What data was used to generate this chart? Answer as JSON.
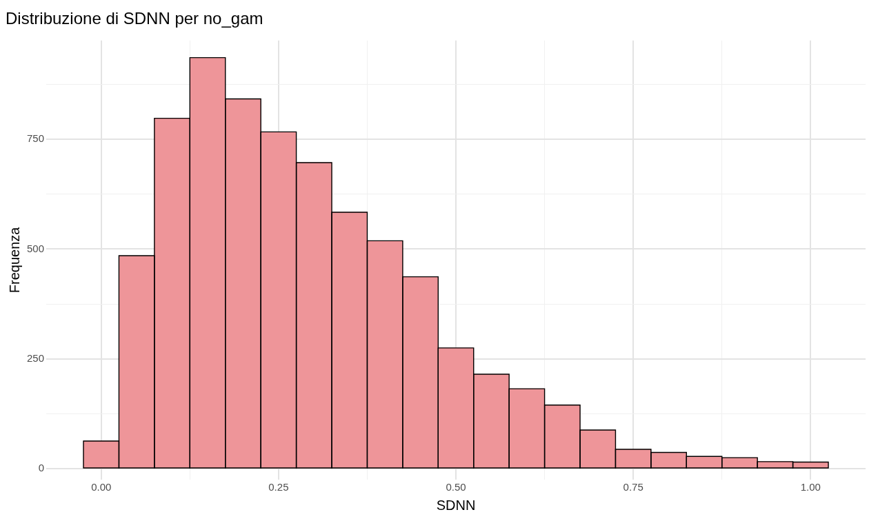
{
  "chart_data": {
    "type": "histogram",
    "title": "Distribuzione di SDNN per no_gam",
    "xlabel": "SDNN",
    "ylabel": "Frequenza",
    "bins": [
      -0.025,
      0.025,
      0.075,
      0.125,
      0.175,
      0.225,
      0.275,
      0.325,
      0.375,
      0.425,
      0.475,
      0.525,
      0.575,
      0.625,
      0.675,
      0.725,
      0.775,
      0.825,
      0.875,
      0.925,
      0.975,
      1.025
    ],
    "values": [
      63,
      485,
      798,
      936,
      842,
      767,
      697,
      584,
      519,
      437,
      275,
      215,
      182,
      145,
      88,
      44,
      37,
      28,
      25,
      16,
      15
    ],
    "color": "#ee9599",
    "xlim": [
      -0.0775,
      1.0775
    ],
    "xticks": [
      {
        "value": 0,
        "label": "0.00"
      },
      {
        "value": 0.125,
        "label": null
      },
      {
        "value": 0.25,
        "label": "0.25"
      },
      {
        "value": 0.375,
        "label": null
      },
      {
        "value": 0.5,
        "label": "0.50"
      },
      {
        "value": 0.625,
        "label": null
      },
      {
        "value": 0.75,
        "label": "0.75"
      },
      {
        "value": 0.875,
        "label": null
      },
      {
        "value": 1,
        "label": "1.00"
      }
    ],
    "ylim": [
      -25,
      975
    ],
    "yticks": [
      0,
      {
        "value": 125,
        "label": null
      },
      250,
      {
        "value": 375,
        "label": null
      },
      500,
      {
        "value": 625,
        "label": null
      },
      750,
      {
        "value": 875,
        "label": null
      }
    ],
    "grid": true
  }
}
